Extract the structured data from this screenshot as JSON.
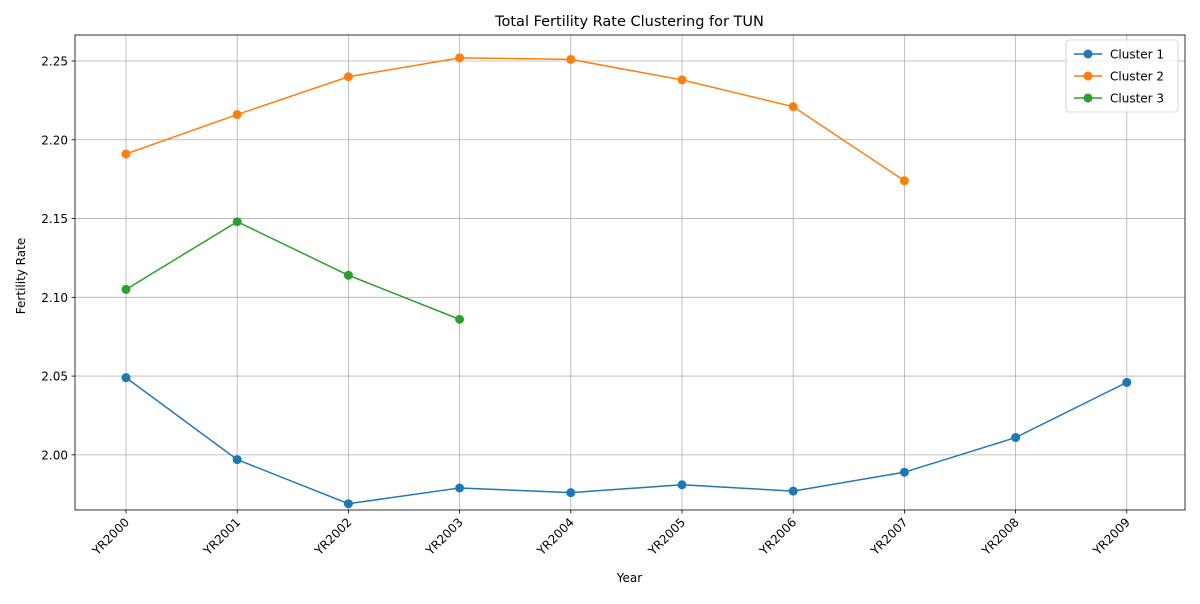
{
  "chart_data": {
    "type": "line",
    "title": "Total Fertility Rate Clustering for TUN",
    "xlabel": "Year",
    "ylabel": "Fertility Rate",
    "categories": [
      "YR2000",
      "YR2001",
      "YR2002",
      "YR2003",
      "YR2004",
      "YR2005",
      "YR2006",
      "YR2007",
      "YR2008",
      "YR2009"
    ],
    "ylim": [
      1.965,
      2.2665
    ],
    "yticks": [
      "2.00",
      "2.05",
      "2.10",
      "2.15",
      "2.20",
      "2.25"
    ],
    "grid": true,
    "legend_position": "top-right",
    "marker": "circle",
    "series": [
      {
        "name": "Cluster 1",
        "color": "#1f77b4",
        "values": [
          2.049,
          1.997,
          1.969,
          1.979,
          1.976,
          1.981,
          1.977,
          1.989,
          2.011,
          2.046
        ]
      },
      {
        "name": "Cluster 2",
        "color": "#ff7f0e",
        "values": [
          2.191,
          2.216,
          2.24,
          2.252,
          2.251,
          2.238,
          2.221,
          2.174,
          null,
          null
        ]
      },
      {
        "name": "Cluster 3",
        "color": "#2ca02c",
        "values": [
          2.105,
          2.148,
          2.114,
          2.086,
          null,
          null,
          null,
          null,
          null,
          null
        ]
      }
    ]
  }
}
